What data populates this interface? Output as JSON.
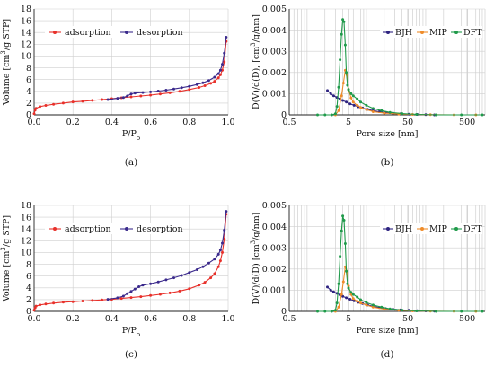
{
  "chart_data": [
    {
      "panel_label": "(a)",
      "type": "line",
      "xlabel": "P/P",
      "xlabel_sub": "o",
      "ylabel": "Volume [cm",
      "ylabel_sup": "3",
      "ylabel_tail": "/g STP]",
      "xlim": [
        0,
        1.0
      ],
      "ylim": [
        0,
        18
      ],
      "x_ticks": [
        "0.0",
        "0.2",
        "0.4",
        "0.6",
        "0.8",
        "1.0"
      ],
      "y_ticks": [
        "0",
        "2",
        "4",
        "6",
        "8",
        "10",
        "12",
        "14",
        "16",
        "18"
      ],
      "grid": true,
      "legend": "top-left",
      "series": [
        {
          "name": "adsorption",
          "color": "#e8302a",
          "marker": "circle",
          "x": [
            0.0,
            0.005,
            0.01,
            0.03,
            0.06,
            0.1,
            0.15,
            0.2,
            0.25,
            0.3,
            0.35,
            0.4,
            0.45,
            0.5,
            0.55,
            0.6,
            0.65,
            0.7,
            0.75,
            0.8,
            0.85,
            0.88,
            0.91,
            0.93,
            0.95,
            0.96,
            0.97,
            0.98,
            0.99
          ],
          "y": [
            0.2,
            0.8,
            1.1,
            1.4,
            1.6,
            1.8,
            2.0,
            2.2,
            2.3,
            2.45,
            2.6,
            2.75,
            2.9,
            3.05,
            3.2,
            3.35,
            3.55,
            3.75,
            4.0,
            4.3,
            4.65,
            4.95,
            5.35,
            5.7,
            6.3,
            6.8,
            7.6,
            9.0,
            12.5
          ]
        },
        {
          "name": "desorption",
          "color": "#3b2a8c",
          "marker": "circle",
          "x": [
            0.99,
            0.98,
            0.97,
            0.96,
            0.95,
            0.93,
            0.9,
            0.87,
            0.84,
            0.8,
            0.76,
            0.72,
            0.68,
            0.64,
            0.6,
            0.56,
            0.52,
            0.5,
            0.48,
            0.46,
            0.43,
            0.38
          ],
          "y": [
            13.2,
            10.5,
            8.6,
            7.6,
            7.0,
            6.4,
            5.85,
            5.45,
            5.15,
            4.85,
            4.6,
            4.4,
            4.2,
            4.05,
            3.9,
            3.8,
            3.7,
            3.55,
            3.2,
            2.95,
            2.8,
            2.6
          ]
        }
      ]
    },
    {
      "panel_label": "(b)",
      "type": "line",
      "xlabel": "Pore size [nm]",
      "ylabel": "D(V)/d(D), [cm",
      "ylabel_sup": "3",
      "ylabel_tail": "/g/nm]",
      "x_scale": "log",
      "xlim": [
        0.5,
        1000
      ],
      "ylim": [
        0,
        0.005
      ],
      "x_ticks": [
        0.5,
        5,
        50,
        500
      ],
      "x_tick_labels": [
        "0.5",
        "5",
        "50",
        "500"
      ],
      "y_ticks": [
        "0",
        "0.001",
        "0.002",
        "0.003",
        "0.004",
        "0.005"
      ],
      "grid": true,
      "legend": "top-right",
      "series": [
        {
          "name": "BJH",
          "color": "#2e2380",
          "marker": "circle",
          "x": [
            2.2,
            2.5,
            2.8,
            3.2,
            3.6,
            4.0,
            4.6,
            5.3,
            6.2,
            7.3,
            8.6,
            10.5,
            13,
            16.5,
            21,
            28,
            38,
            52,
            72,
            100,
            140
          ],
          "y": [
            0.00115,
            0.001,
            0.0009,
            0.00082,
            0.00075,
            0.00068,
            0.0006,
            0.00052,
            0.00045,
            0.00038,
            0.00032,
            0.00026,
            0.0002,
            0.00015,
            0.00011,
            8e-05,
            5e-05,
            3e-05,
            2e-05,
            1e-05,
            0.0
          ]
        },
        {
          "name": "MIP",
          "color": "#ef8c2a",
          "marker": "circle",
          "x": [
            3.0,
            3.4,
            3.8,
            4.1,
            4.4,
            4.7,
            5.0,
            5.5,
            6.0,
            7.0,
            8.0,
            10,
            13,
            20,
            35,
            60,
            120,
            300,
            700
          ],
          "y": [
            0.0,
            0.0002,
            0.0009,
            0.0015,
            0.0021,
            0.0019,
            0.0012,
            0.0008,
            0.0006,
            0.00045,
            0.00035,
            0.00025,
            0.00015,
            8e-05,
            4e-05,
            2e-05,
            1e-05,
            0.0,
            0.0
          ]
        },
        {
          "name": "DFT",
          "color": "#1f9a4a",
          "marker": "circle",
          "x": [
            1.5,
            2.0,
            2.6,
            3.0,
            3.2,
            3.4,
            3.6,
            3.8,
            4.0,
            4.2,
            4.4,
            4.6,
            4.8,
            5.0,
            5.5,
            6.0,
            7.0,
            8.0,
            10,
            13,
            18,
            25,
            40,
            70,
            150,
            400,
            900
          ],
          "y": [
            0.0,
            0.0,
            0.0,
            5e-05,
            0.0004,
            0.0013,
            0.0026,
            0.0038,
            0.0045,
            0.0044,
            0.0033,
            0.002,
            0.0014,
            0.0012,
            0.001,
            0.0009,
            0.00075,
            0.0006,
            0.00045,
            0.0003,
            0.0002,
            0.00012,
            6e-05,
            2e-05,
            0.0,
            0.0,
            0.0
          ]
        }
      ]
    },
    {
      "panel_label": "(c)",
      "type": "line",
      "xlabel": "P/P",
      "xlabel_sub": "o",
      "ylabel": "Volume [cm",
      "ylabel_sup": "3",
      "ylabel_tail": "/g STP]",
      "xlim": [
        0,
        1.0
      ],
      "ylim": [
        0,
        18
      ],
      "x_ticks": [
        "0.0",
        "0.2",
        "0.4",
        "0.6",
        "0.8",
        "1.0"
      ],
      "y_ticks": [
        "0",
        "2",
        "4",
        "6",
        "8",
        "10",
        "12",
        "14",
        "16",
        "18"
      ],
      "grid": true,
      "legend": "top-left",
      "series": [
        {
          "name": "adsorption",
          "color": "#e8302a",
          "marker": "circle",
          "x": [
            0.0,
            0.005,
            0.01,
            0.03,
            0.06,
            0.1,
            0.15,
            0.2,
            0.25,
            0.3,
            0.35,
            0.4,
            0.45,
            0.5,
            0.55,
            0.6,
            0.65,
            0.7,
            0.75,
            0.8,
            0.85,
            0.88,
            0.91,
            0.93,
            0.95,
            0.96,
            0.97,
            0.98,
            0.99
          ],
          "y": [
            0.2,
            0.6,
            0.9,
            1.1,
            1.25,
            1.4,
            1.55,
            1.65,
            1.75,
            1.85,
            1.95,
            2.05,
            2.2,
            2.35,
            2.5,
            2.7,
            2.9,
            3.15,
            3.45,
            3.85,
            4.45,
            4.95,
            5.7,
            6.4,
            7.6,
            8.6,
            10.0,
            12.3,
            16.5
          ]
        },
        {
          "name": "desorption",
          "color": "#3b2a8c",
          "marker": "circle",
          "x": [
            0.99,
            0.98,
            0.97,
            0.96,
            0.95,
            0.93,
            0.9,
            0.87,
            0.84,
            0.8,
            0.76,
            0.72,
            0.68,
            0.64,
            0.6,
            0.56,
            0.54,
            0.52,
            0.5,
            0.48,
            0.46,
            0.43,
            0.38
          ],
          "y": [
            17.0,
            13.8,
            11.6,
            10.4,
            9.7,
            8.9,
            8.2,
            7.6,
            7.1,
            6.6,
            6.1,
            5.7,
            5.35,
            5.0,
            4.7,
            4.45,
            4.2,
            3.8,
            3.4,
            3.0,
            2.6,
            2.3,
            2.05
          ]
        }
      ]
    },
    {
      "panel_label": "(d)",
      "type": "line",
      "xlabel": "Pore size [nm]",
      "ylabel": "D(V)/d(D) [cm",
      "ylabel_sup": "3",
      "ylabel_tail": "/g/nm]",
      "x_scale": "log",
      "xlim": [
        0.5,
        1000
      ],
      "ylim": [
        0,
        0.005
      ],
      "x_ticks": [
        0.5,
        5,
        50,
        500
      ],
      "x_tick_labels": [
        "0.5",
        "5",
        "50",
        "500"
      ],
      "y_ticks": [
        "0",
        "0.001",
        "0.002",
        "0.003",
        "0.004",
        "0.005"
      ],
      "grid": true,
      "legend": "middle-right",
      "series": [
        {
          "name": "BJH",
          "color": "#2e2380",
          "marker": "circle",
          "x": [
            2.2,
            2.5,
            2.8,
            3.2,
            3.6,
            4.0,
            4.6,
            5.3,
            6.2,
            7.3,
            8.6,
            10.5,
            13,
            16.5,
            21,
            28,
            38,
            52,
            72,
            100,
            140
          ],
          "y": [
            0.00115,
            0.001,
            0.00092,
            0.00085,
            0.00078,
            0.00071,
            0.00064,
            0.00057,
            0.0005,
            0.00043,
            0.00037,
            0.0003,
            0.00024,
            0.00018,
            0.00013,
            0.0001,
            7e-05,
            5e-05,
            3e-05,
            2e-05,
            1e-05
          ]
        },
        {
          "name": "MIP",
          "color": "#ef8c2a",
          "marker": "circle",
          "x": [
            3.0,
            3.4,
            3.8,
            4.1,
            4.4,
            4.7,
            5.0,
            5.5,
            6.0,
            7.0,
            8.0,
            10,
            13,
            20,
            35,
            60,
            120,
            300,
            700
          ],
          "y": [
            0.0,
            0.0002,
            0.0008,
            0.0014,
            0.0021,
            0.0019,
            0.0012,
            0.0008,
            0.0006,
            0.00048,
            0.0004,
            0.0003,
            0.0002,
            0.0001,
            5e-05,
            2e-05,
            1e-05,
            0.0,
            0.0
          ]
        },
        {
          "name": "DFT",
          "color": "#1f9a4a",
          "marker": "circle",
          "x": [
            1.5,
            2.0,
            2.6,
            3.0,
            3.2,
            3.4,
            3.6,
            3.8,
            4.0,
            4.2,
            4.4,
            4.6,
            4.8,
            5.0,
            5.5,
            6.0,
            7.0,
            8.0,
            10,
            13,
            18,
            25,
            40,
            70,
            150,
            400,
            900
          ],
          "y": [
            0.0,
            0.0,
            0.0,
            5e-05,
            0.0004,
            0.0013,
            0.0026,
            0.0038,
            0.0045,
            0.0043,
            0.0032,
            0.0019,
            0.0013,
            0.0011,
            0.0009,
            0.0008,
            0.00068,
            0.00055,
            0.00042,
            0.0003,
            0.0002,
            0.00012,
            6e-05,
            2e-05,
            0.0,
            0.0,
            0.0
          ]
        }
      ]
    }
  ]
}
